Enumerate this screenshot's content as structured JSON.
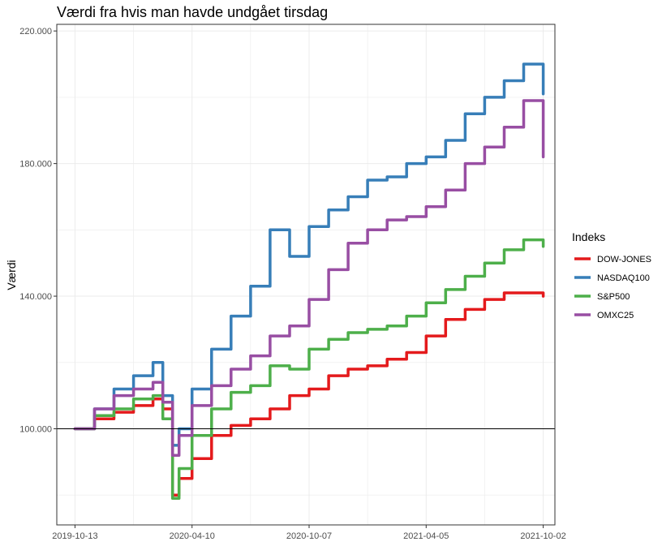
{
  "chart_data": {
    "type": "line",
    "title": "Værdi fra hvis man havde undgået tirsdag",
    "xlabel": "",
    "ylabel": "Værdi",
    "x_tick_labels": [
      "2019-10-13",
      "2020-04-10",
      "2020-10-07",
      "2021-04-05",
      "2021-10-02"
    ],
    "x_ticks": [
      "2019-10-13",
      "2020-04-10",
      "2020-10-07",
      "2021-04-05",
      "2021-10-02"
    ],
    "xlim": [
      "2019-09-15",
      "2021-10-20"
    ],
    "y_tick_labels": [
      "100.000",
      "140.000",
      "180.000",
      "220.000"
    ],
    "y_ticks": [
      100000,
      140000,
      180000,
      220000
    ],
    "ylim": [
      71000,
      222000
    ],
    "grid": true,
    "reference_line": 100000,
    "legend_title": "Indeks",
    "legend_position": "right",
    "x": [
      "2019-10-13",
      "2019-11-12",
      "2019-12-12",
      "2020-01-11",
      "2020-02-10",
      "2020-02-25",
      "2020-03-11",
      "2020-03-21",
      "2020-04-10",
      "2020-05-10",
      "2020-06-09",
      "2020-07-09",
      "2020-08-08",
      "2020-09-07",
      "2020-10-07",
      "2020-11-06",
      "2020-12-06",
      "2021-01-05",
      "2021-02-04",
      "2021-03-06",
      "2021-04-05",
      "2021-05-05",
      "2021-06-04",
      "2021-07-04",
      "2021-08-03",
      "2021-09-02",
      "2021-10-02"
    ],
    "series": [
      {
        "name": "DOW-JONES",
        "color": "#E41A1C",
        "values": [
          100000,
          103000,
          105000,
          107000,
          109000,
          106000,
          80000,
          85000,
          91000,
          98000,
          101000,
          103000,
          106000,
          110000,
          112000,
          116000,
          118000,
          119000,
          121000,
          123000,
          128000,
          133000,
          136000,
          139000,
          141000,
          141000,
          140000
        ]
      },
      {
        "name": "NASDAQ100",
        "color": "#377EB8",
        "values": [
          100000,
          106000,
          112000,
          116000,
          120000,
          110000,
          95000,
          100000,
          112000,
          124000,
          134000,
          143000,
          160000,
          152000,
          161000,
          166000,
          170000,
          175000,
          176000,
          180000,
          182000,
          187000,
          195000,
          200000,
          205000,
          210000,
          201000
        ]
      },
      {
        "name": "S&P500",
        "color": "#4DAF4A",
        "values": [
          100000,
          104000,
          106000,
          109000,
          110000,
          103000,
          79000,
          88000,
          98000,
          106000,
          111000,
          113000,
          119000,
          118000,
          124000,
          127000,
          129000,
          130000,
          131000,
          134000,
          138000,
          142000,
          146000,
          150000,
          154000,
          157000,
          155000
        ]
      },
      {
        "name": "OMXC25",
        "color": "#984EA3",
        "values": [
          100000,
          106000,
          110000,
          112000,
          114000,
          108000,
          92000,
          98000,
          107000,
          113000,
          118000,
          122000,
          128000,
          131000,
          139000,
          148000,
          156000,
          160000,
          163000,
          164000,
          167000,
          172000,
          180000,
          185000,
          191000,
          199000,
          182000
        ]
      }
    ]
  }
}
